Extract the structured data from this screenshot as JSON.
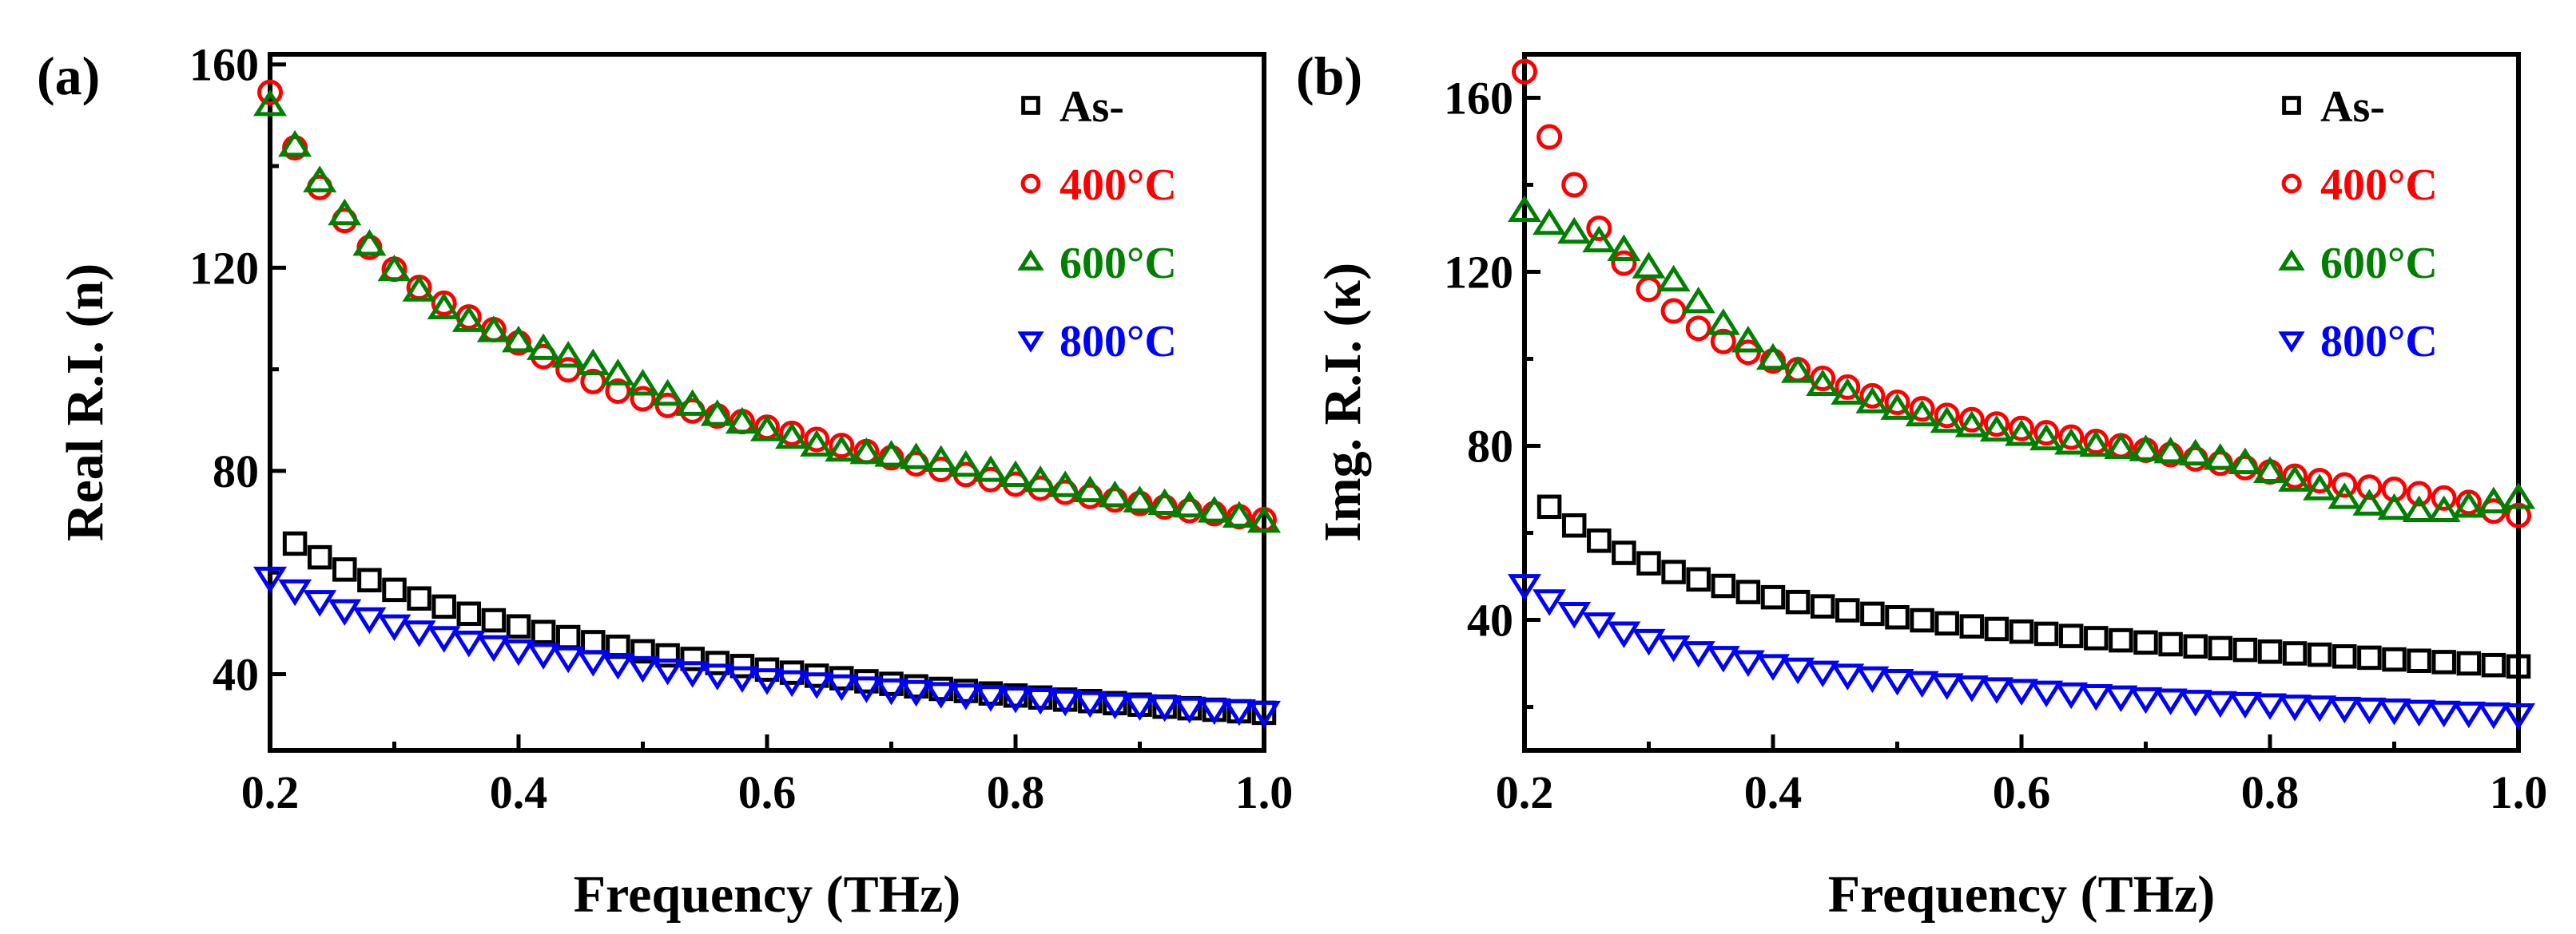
{
  "chart_data": [
    {
      "type": "scatter",
      "panel_label": "(a)",
      "xlabel": "Frequency (THz)",
      "ylabel": "Real R.I. (n)",
      "xlim": [
        0.2,
        1.0
      ],
      "ylim": [
        25,
        162
      ],
      "xticks": [
        0.2,
        0.4,
        0.6,
        0.8,
        1.0
      ],
      "xtick_labels": [
        "0.2",
        "0.4",
        "0.6",
        "0.8",
        "1.0"
      ],
      "yticks": [
        40,
        80,
        120,
        160
      ],
      "ytick_labels": [
        "40",
        "80",
        "120",
        "160"
      ],
      "legend_position": "top-right",
      "series": [
        {
          "name": "As-",
          "marker": "square",
          "color": "#000000",
          "x": [
            0.22,
            0.24,
            0.26,
            0.28,
            0.3,
            0.32,
            0.34,
            0.36,
            0.38,
            0.4,
            0.42,
            0.44,
            0.46,
            0.48,
            0.5,
            0.52,
            0.54,
            0.56,
            0.58,
            0.6,
            0.62,
            0.64,
            0.66,
            0.68,
            0.7,
            0.72,
            0.74,
            0.76,
            0.78,
            0.8,
            0.82,
            0.84,
            0.86,
            0.88,
            0.9,
            0.92,
            0.94,
            0.96,
            0.98,
            1.0
          ],
          "y": [
            65.7,
            63.0,
            60.6,
            58.5,
            56.6,
            54.9,
            53.3,
            51.9,
            50.6,
            49.4,
            48.3,
            47.3,
            46.3,
            45.4,
            44.5,
            43.7,
            43.0,
            42.2,
            41.6,
            40.9,
            40.3,
            39.7,
            39.2,
            38.6,
            38.1,
            37.6,
            37.1,
            36.7,
            36.2,
            35.8,
            35.4,
            35.0,
            34.7,
            34.3,
            34.0,
            33.6,
            33.3,
            33.0,
            32.7,
            32.4
          ]
        },
        {
          "name": "400°C",
          "marker": "circle",
          "color": "#ff0000",
          "x": [
            0.2,
            0.22,
            0.24,
            0.26,
            0.28,
            0.3,
            0.32,
            0.34,
            0.36,
            0.38,
            0.4,
            0.42,
            0.44,
            0.46,
            0.48,
            0.5,
            0.52,
            0.54,
            0.56,
            0.58,
            0.6,
            0.62,
            0.64,
            0.66,
            0.68,
            0.7,
            0.72,
            0.74,
            0.76,
            0.78,
            0.8,
            0.82,
            0.84,
            0.86,
            0.88,
            0.9,
            0.92,
            0.94,
            0.96,
            0.98,
            1.0
          ],
          "y": [
            154.5,
            143.6,
            135.8,
            129.3,
            124.0,
            119.7,
            116.1,
            113.0,
            110.3,
            107.8,
            105.2,
            102.5,
            99.9,
            97.6,
            95.7,
            94.2,
            92.9,
            91.8,
            90.8,
            89.7,
            88.6,
            87.4,
            86.2,
            85.0,
            83.8,
            82.6,
            81.4,
            80.3,
            79.3,
            78.3,
            77.4,
            76.6,
            75.8,
            75.0,
            74.3,
            73.6,
            72.9,
            72.2,
            71.6,
            71.0,
            70.4
          ]
        },
        {
          "name": "600°C",
          "marker": "triangle-up",
          "color": "#008000",
          "x": [
            0.2,
            0.22,
            0.24,
            0.26,
            0.28,
            0.3,
            0.32,
            0.34,
            0.36,
            0.38,
            0.4,
            0.42,
            0.44,
            0.46,
            0.48,
            0.5,
            0.52,
            0.54,
            0.56,
            0.58,
            0.6,
            0.62,
            0.64,
            0.66,
            0.68,
            0.7,
            0.72,
            0.74,
            0.76,
            0.78,
            0.8,
            0.82,
            0.84,
            0.86,
            0.88,
            0.9,
            0.92,
            0.94,
            0.96,
            0.98,
            1.0
          ],
          "y": [
            152.0,
            144.0,
            137.0,
            130.5,
            124.5,
            119.5,
            115.5,
            112.0,
            109.5,
            107.5,
            105.5,
            104.0,
            102.5,
            101.0,
            99.0,
            97.0,
            95.0,
            93.0,
            91.0,
            89.5,
            88.0,
            86.5,
            85.0,
            84.0,
            83.5,
            83.0,
            82.5,
            82.0,
            81.0,
            80.0,
            79.0,
            78.0,
            77.0,
            76.0,
            75.0,
            74.0,
            73.5,
            73.0,
            72.0,
            71.0,
            70.0
          ]
        },
        {
          "name": "800°C",
          "marker": "triangle-down",
          "color": "#0000ff",
          "x": [
            0.2,
            0.22,
            0.24,
            0.26,
            0.28,
            0.3,
            0.32,
            0.34,
            0.36,
            0.38,
            0.4,
            0.42,
            0.44,
            0.46,
            0.48,
            0.5,
            0.52,
            0.54,
            0.56,
            0.58,
            0.6,
            0.62,
            0.64,
            0.66,
            0.68,
            0.7,
            0.72,
            0.74,
            0.76,
            0.78,
            0.8,
            0.82,
            0.84,
            0.86,
            0.88,
            0.9,
            0.92,
            0.94,
            0.96,
            0.98,
            1.0
          ],
          "y": [
            59.0,
            56.5,
            54.4,
            52.6,
            51.0,
            49.6,
            48.4,
            47.3,
            46.4,
            45.5,
            44.7,
            44.0,
            43.3,
            42.6,
            42.0,
            41.4,
            40.9,
            40.4,
            39.9,
            39.4,
            39.0,
            38.6,
            38.2,
            37.8,
            37.4,
            37.0,
            36.7,
            36.3,
            36.0,
            35.7,
            35.4,
            35.1,
            34.8,
            34.5,
            34.2,
            33.9,
            33.7,
            33.4,
            33.1,
            32.9,
            32.6
          ]
        }
      ]
    },
    {
      "type": "scatter",
      "panel_label": "(b)",
      "xlabel": "Frequency (THz)",
      "ylabel": "Img. R.I. (κ)",
      "xlim": [
        0.2,
        1.0
      ],
      "ylim": [
        10,
        170
      ],
      "xticks": [
        0.2,
        0.4,
        0.6,
        0.8,
        1.0
      ],
      "xtick_labels": [
        "0.2",
        "0.4",
        "0.6",
        "0.8",
        "1.0"
      ],
      "yticks": [
        40,
        80,
        120,
        160
      ],
      "ytick_labels": [
        "40",
        "80",
        "120",
        "160"
      ],
      "legend_position": "top-right",
      "series": [
        {
          "name": "As-",
          "marker": "square",
          "color": "#000000",
          "x": [
            0.22,
            0.24,
            0.26,
            0.28,
            0.3,
            0.32,
            0.34,
            0.36,
            0.38,
            0.4,
            0.42,
            0.44,
            0.46,
            0.48,
            0.5,
            0.52,
            0.54,
            0.56,
            0.58,
            0.6,
            0.62,
            0.64,
            0.66,
            0.68,
            0.7,
            0.72,
            0.74,
            0.76,
            0.78,
            0.8,
            0.82,
            0.84,
            0.86,
            0.88,
            0.9,
            0.92,
            0.94,
            0.96,
            0.98,
            1.0
          ],
          "y": [
            66.0,
            61.7,
            58.2,
            55.4,
            53.0,
            51.0,
            49.3,
            47.8,
            46.4,
            45.2,
            44.1,
            43.1,
            42.2,
            41.4,
            40.6,
            39.9,
            39.2,
            38.5,
            37.9,
            37.3,
            36.8,
            36.3,
            35.8,
            35.3,
            34.8,
            34.4,
            33.9,
            33.5,
            33.1,
            32.7,
            32.3,
            32.0,
            31.6,
            31.3,
            30.9,
            30.6,
            30.3,
            30.0,
            29.6,
            29.3
          ]
        },
        {
          "name": "400°C",
          "marker": "circle",
          "color": "#ff0000",
          "x": [
            0.2,
            0.22,
            0.24,
            0.26,
            0.28,
            0.3,
            0.32,
            0.34,
            0.36,
            0.38,
            0.4,
            0.42,
            0.44,
            0.46,
            0.48,
            0.5,
            0.52,
            0.54,
            0.56,
            0.58,
            0.6,
            0.62,
            0.64,
            0.66,
            0.68,
            0.7,
            0.72,
            0.74,
            0.76,
            0.78,
            0.8,
            0.82,
            0.84,
            0.86,
            0.88,
            0.9,
            0.92,
            0.94,
            0.96,
            0.98,
            1.0
          ],
          "y": [
            166.0,
            151.0,
            140.0,
            130.0,
            122.0,
            116.0,
            111.0,
            107.0,
            104.0,
            101.5,
            99.5,
            97.5,
            95.5,
            93.5,
            91.5,
            90.0,
            88.5,
            87.0,
            86.0,
            85.0,
            84.0,
            83.0,
            82.0,
            81.0,
            80.0,
            79.0,
            78.0,
            77.0,
            76.0,
            75.0,
            74.0,
            73.0,
            72.0,
            71.0,
            70.5,
            70.0,
            69.0,
            68.0,
            67.0,
            65.0,
            64.0
          ]
        },
        {
          "name": "600°C",
          "marker": "triangle-up",
          "color": "#008000",
          "x": [
            0.2,
            0.22,
            0.24,
            0.26,
            0.28,
            0.3,
            0.32,
            0.34,
            0.36,
            0.38,
            0.4,
            0.42,
            0.44,
            0.46,
            0.48,
            0.5,
            0.52,
            0.54,
            0.56,
            0.58,
            0.6,
            0.62,
            0.64,
            0.66,
            0.68,
            0.7,
            0.72,
            0.74,
            0.76,
            0.78,
            0.8,
            0.82,
            0.84,
            0.86,
            0.88,
            0.9,
            0.92,
            0.94,
            0.96,
            0.98,
            1.0
          ],
          "y": [
            134.0,
            131.0,
            129.0,
            127.0,
            125.0,
            121.0,
            118.0,
            113.0,
            108.0,
            104.0,
            100.0,
            97.0,
            94.0,
            92.0,
            90.0,
            88.5,
            87.0,
            85.5,
            84.5,
            83.5,
            82.5,
            81.5,
            80.5,
            80.0,
            79.5,
            79.0,
            78.5,
            78.0,
            77.0,
            76.0,
            74.0,
            72.0,
            70.0,
            68.0,
            66.5,
            65.5,
            65.0,
            65.0,
            66.0,
            67.0,
            68.0
          ]
        },
        {
          "name": "800°C",
          "marker": "triangle-down",
          "color": "#0000ff",
          "x": [
            0.2,
            0.22,
            0.24,
            0.26,
            0.28,
            0.3,
            0.32,
            0.34,
            0.36,
            0.38,
            0.4,
            0.42,
            0.44,
            0.46,
            0.48,
            0.5,
            0.52,
            0.54,
            0.56,
            0.58,
            0.6,
            0.62,
            0.64,
            0.66,
            0.68,
            0.7,
            0.72,
            0.74,
            0.76,
            0.78,
            0.8,
            0.82,
            0.84,
            0.86,
            0.88,
            0.9,
            0.92,
            0.94,
            0.96,
            0.98,
            1.0
          ],
          "y": [
            48.0,
            44.5,
            41.6,
            39.2,
            37.1,
            35.4,
            33.9,
            32.6,
            31.5,
            30.5,
            29.6,
            28.8,
            28.1,
            27.4,
            26.8,
            26.2,
            25.7,
            25.2,
            24.7,
            24.3,
            23.9,
            23.5,
            23.1,
            22.7,
            22.4,
            22.0,
            21.7,
            21.4,
            21.1,
            20.9,
            20.6,
            20.3,
            20.1,
            19.8,
            19.6,
            19.4,
            19.1,
            18.9,
            18.7,
            18.5,
            18.3
          ]
        }
      ]
    }
  ]
}
